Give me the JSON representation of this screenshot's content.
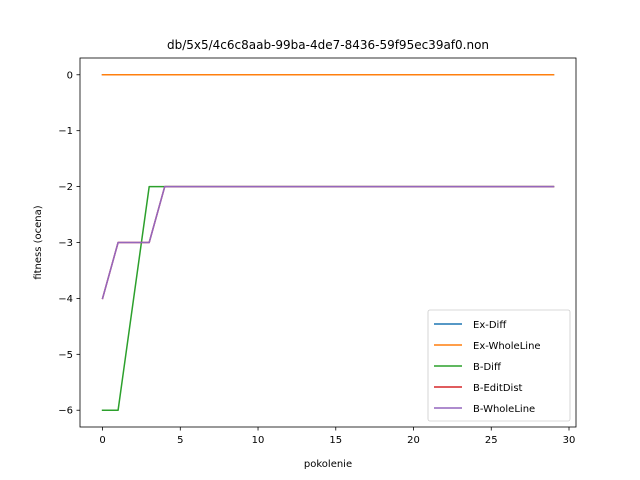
{
  "chart_data": {
    "type": "line",
    "title": "db/5x5/4c6c8aab-99ba-4de7-8436-59f95ec39af0.non",
    "xlabel": "pokolenie",
    "ylabel": "fitness (ocena)",
    "xlim": [
      -1.45,
      30.45
    ],
    "ylim": [
      -6.3,
      0.3
    ],
    "xticks": [
      0,
      5,
      10,
      15,
      20,
      25,
      30
    ],
    "yticks": [
      0,
      -1,
      -2,
      -3,
      -4,
      -5,
      -6
    ],
    "xtick_labels": [
      "0",
      "5",
      "10",
      "15",
      "20",
      "25",
      "30"
    ],
    "ytick_labels": [
      "0",
      "−1",
      "−2",
      "−3",
      "−4",
      "−5",
      "−6"
    ],
    "grid": false,
    "legend_position": "lower-right",
    "series": [
      {
        "name": "Ex-Diff",
        "color": "#1f77b4",
        "x": [
          0,
          29
        ],
        "y": [
          0,
          0
        ]
      },
      {
        "name": "Ex-WholeLine",
        "color": "#ff7f0e",
        "x": [
          0,
          29
        ],
        "y": [
          0,
          0
        ]
      },
      {
        "name": "B-Diff",
        "color": "#2ca02c",
        "x": [
          0,
          1,
          3,
          4,
          29
        ],
        "y": [
          -6,
          -6,
          -2,
          -2,
          -2
        ]
      },
      {
        "name": "B-EditDist",
        "color": "#d62728",
        "x": [
          0,
          1,
          3,
          4,
          29
        ],
        "y": [
          -4,
          -3,
          -3,
          -2,
          -2
        ]
      },
      {
        "name": "B-WholeLine",
        "color": "#9467bd",
        "x": [
          0,
          1,
          3,
          4,
          29
        ],
        "y": [
          -4,
          -3,
          -3,
          -2,
          -2
        ]
      }
    ]
  }
}
